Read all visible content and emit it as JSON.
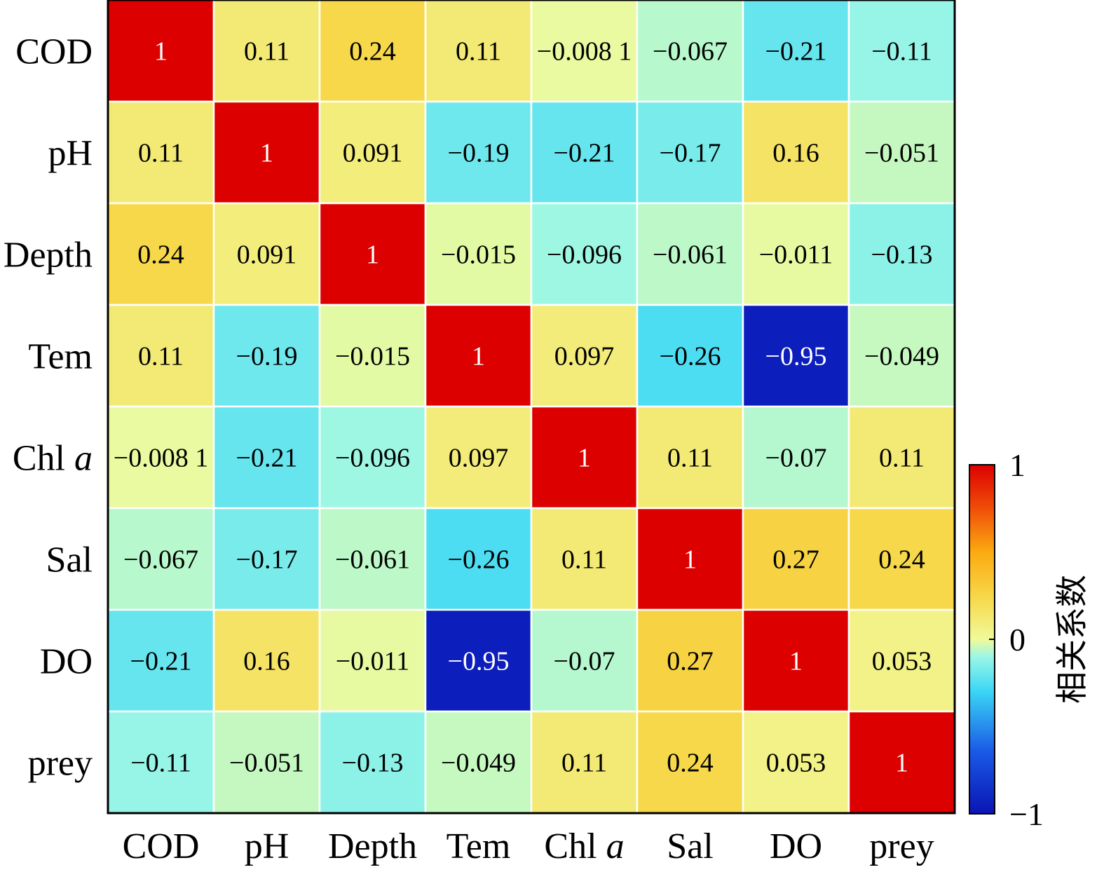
{
  "chart_data": {
    "type": "heatmap",
    "rows": [
      "COD",
      "pH",
      "Depth",
      "Tem",
      "Chl a",
      "Sal",
      "DO",
      "prey"
    ],
    "columns": [
      "COD",
      "pH",
      "Depth",
      "Tem",
      "Chl a",
      "Sal",
      "DO",
      "prey"
    ],
    "italic_suffix": "a",
    "values": [
      [
        1,
        0.11,
        0.24,
        0.11,
        -0.0081,
        -0.067,
        -0.21,
        -0.11
      ],
      [
        0.11,
        1,
        0.091,
        -0.19,
        -0.21,
        -0.17,
        0.16,
        -0.051
      ],
      [
        0.24,
        0.091,
        1,
        -0.015,
        -0.096,
        -0.061,
        -0.011,
        -0.13
      ],
      [
        0.11,
        -0.19,
        -0.015,
        1,
        0.097,
        -0.26,
        -0.95,
        -0.049
      ],
      [
        -0.0081,
        -0.21,
        -0.096,
        0.097,
        1,
        0.11,
        -0.07,
        0.11
      ],
      [
        -0.067,
        -0.17,
        -0.061,
        -0.26,
        0.11,
        1,
        0.27,
        0.24
      ],
      [
        -0.21,
        0.16,
        -0.011,
        -0.95,
        -0.07,
        0.27,
        1,
        0.053
      ],
      [
        -0.11,
        -0.051,
        -0.13,
        -0.049,
        0.11,
        0.24,
        0.053,
        1
      ]
    ],
    "labels": [
      [
        "1",
        "0.11",
        "0.24",
        "0.11",
        "−0.008 1",
        "−0.067",
        "−0.21",
        "−0.11"
      ],
      [
        "0.11",
        "1",
        "0.091",
        "−0.19",
        "−0.21",
        "−0.17",
        "0.16",
        "−0.051"
      ],
      [
        "0.24",
        "0.091",
        "1",
        "−0.015",
        "−0.096",
        "−0.061",
        "−0.011",
        "−0.13"
      ],
      [
        "0.11",
        "−0.19",
        "−0.015",
        "1",
        "0.097",
        "−0.26",
        "−0.95",
        "−0.049"
      ],
      [
        "−0.008 1",
        "−0.21",
        "−0.096",
        "0.097",
        "1",
        "0.11",
        "−0.07",
        "0.11"
      ],
      [
        "−0.067",
        "−0.17",
        "−0.061",
        "−0.26",
        "0.11",
        "1",
        "0.27",
        "0.24"
      ],
      [
        "−0.21",
        "0.16",
        "−0.011",
        "−0.95",
        "−0.07",
        "0.27",
        "1",
        "0.053"
      ],
      [
        "−0.11",
        "−0.051",
        "−0.13",
        "−0.049",
        "0.11",
        "0.24",
        "0.053",
        "1"
      ]
    ],
    "colorbar": {
      "title": "相关系数",
      "min": -1,
      "max": 1,
      "ticks": [
        {
          "value": 1,
          "label": "1"
        },
        {
          "value": 0,
          "label": "0"
        },
        {
          "value": -1,
          "label": "−1"
        }
      ]
    },
    "colors": {
      "high": "#e00000",
      "mid": "#f0fa9a",
      "low": "#0010c0"
    },
    "title": "",
    "xlabel": "",
    "ylabel": ""
  }
}
